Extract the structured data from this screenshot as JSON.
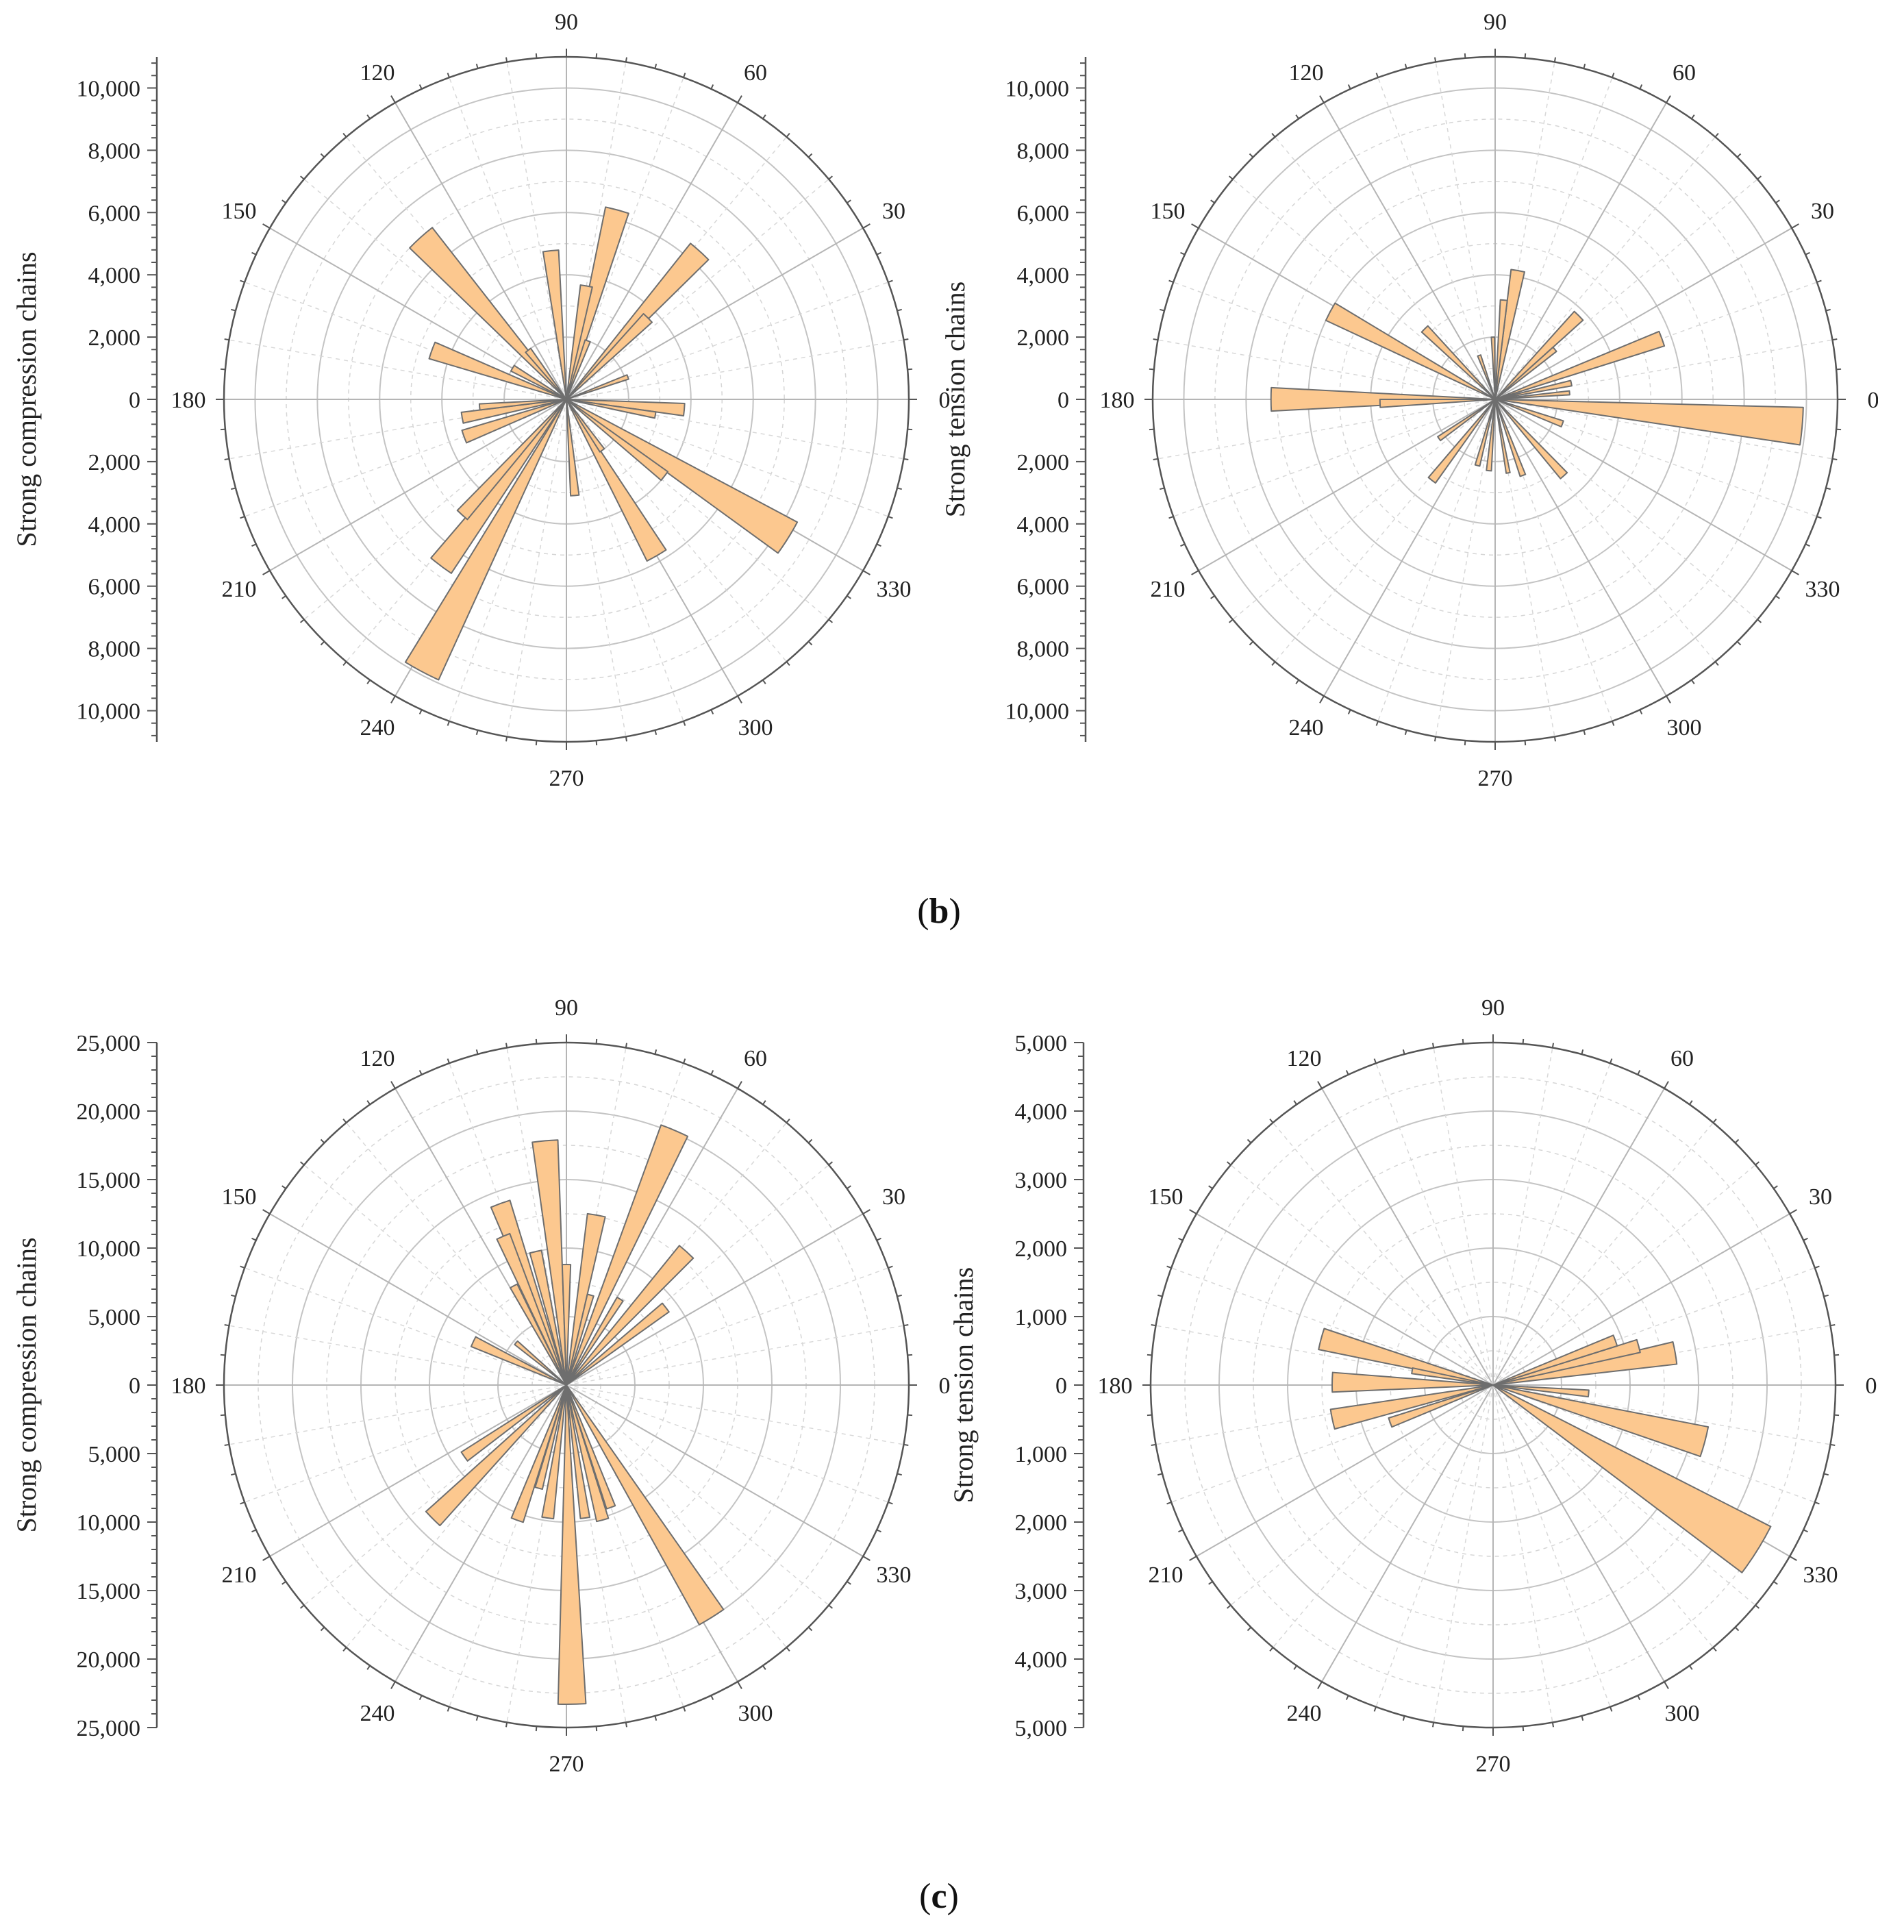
{
  "figure": {
    "captions": [
      {
        "id": "b",
        "open": "(",
        "letter": "b",
        "close": ")"
      },
      {
        "id": "c",
        "open": "(",
        "letter": "c",
        "close": ")"
      }
    ]
  },
  "chart_data": [
    {
      "id": "b-left",
      "type": "rose",
      "panel": "b",
      "ylabel": "Strong compression chains",
      "rmax": 11000,
      "ticks": [
        0,
        2000,
        4000,
        6000,
        8000,
        10000
      ],
      "tick_labels": [
        "0",
        "2,000",
        "4,000",
        "6,000",
        "8,000",
        "10,000"
      ],
      "angle_labels": [
        "0",
        "30",
        "60",
        "90",
        "120",
        "150",
        "180",
        "210",
        "240",
        "270",
        "300",
        "330"
      ],
      "bar_color": "#fcc88f",
      "bars": [
        {
          "angle": 132,
          "width": 8,
          "value": 7000
        },
        {
          "angle": 128,
          "width": 6,
          "value": 2000
        },
        {
          "angle": 160,
          "width": 7,
          "value": 4600
        },
        {
          "angle": 150,
          "width": 6,
          "value": 2000
        },
        {
          "angle": 96,
          "width": 6,
          "value": 4800
        },
        {
          "angle": 75,
          "width": 7,
          "value": 6300
        },
        {
          "angle": 80,
          "width": 6,
          "value": 3700
        },
        {
          "angle": 70,
          "width": 5,
          "value": 2000
        },
        {
          "angle": 48,
          "width": 7,
          "value": 6400
        },
        {
          "angle": 45,
          "width": 6,
          "value": 3700
        },
        {
          "angle": 20,
          "width": 4,
          "value": 2100
        },
        {
          "angle": 355,
          "width": 6,
          "value": 3800
        },
        {
          "angle": 350,
          "width": 4,
          "value": 2900
        },
        {
          "angle": 328,
          "width": 8,
          "value": 8400
        },
        {
          "angle": 322,
          "width": 5,
          "value": 4000
        },
        {
          "angle": 300,
          "width": 7,
          "value": 5800
        },
        {
          "angle": 305,
          "width": 5,
          "value": 2000
        },
        {
          "angle": 275,
          "width": 5,
          "value": 3100
        },
        {
          "angle": 242,
          "width": 7,
          "value": 9900
        },
        {
          "angle": 233,
          "width": 7,
          "value": 6700
        },
        {
          "angle": 228,
          "width": 5,
          "value": 5000
        },
        {
          "angle": 200,
          "width": 7,
          "value": 3500
        },
        {
          "angle": 190,
          "width": 6,
          "value": 3400
        },
        {
          "angle": 185,
          "width": 4,
          "value": 2800
        }
      ]
    },
    {
      "id": "b-right",
      "type": "rose",
      "panel": "b",
      "ylabel": "Strong tension chains",
      "rmax": 11000,
      "ticks": [
        0,
        2000,
        4000,
        6000,
        8000,
        10000
      ],
      "tick_labels": [
        "0",
        "2,000",
        "4,000",
        "6,000",
        "8,000",
        "10,000"
      ],
      "angle_labels": [
        "0",
        "30",
        "60",
        "90",
        "120",
        "150",
        "180",
        "210",
        "240",
        "270",
        "300",
        "330"
      ],
      "bar_color": "#fcc88f",
      "bars": [
        {
          "angle": 355,
          "width": 7,
          "value": 9900
        },
        {
          "angle": 180,
          "width": 6,
          "value": 7200
        },
        {
          "angle": 182,
          "width": 4,
          "value": 3700
        },
        {
          "angle": 152,
          "width": 6,
          "value": 6000
        },
        {
          "angle": 135,
          "width": 5,
          "value": 3200
        },
        {
          "angle": 80,
          "width": 6,
          "value": 4200
        },
        {
          "angle": 85,
          "width": 4,
          "value": 3200
        },
        {
          "angle": 92,
          "width": 3,
          "value": 2000
        },
        {
          "angle": 45,
          "width": 6,
          "value": 3800
        },
        {
          "angle": 40,
          "width": 4,
          "value": 2500
        },
        {
          "angle": 20,
          "width": 5,
          "value": 5700
        },
        {
          "angle": 12,
          "width": 4,
          "value": 2500
        },
        {
          "angle": 5,
          "width": 3,
          "value": 2400
        },
        {
          "angle": 340,
          "width": 5,
          "value": 2300
        },
        {
          "angle": 312,
          "width": 5,
          "value": 3300
        },
        {
          "angle": 290,
          "width": 4,
          "value": 2600
        },
        {
          "angle": 280,
          "width": 3,
          "value": 2400
        },
        {
          "angle": 265,
          "width": 4,
          "value": 2300
        },
        {
          "angle": 255,
          "width": 4,
          "value": 2200
        },
        {
          "angle": 232,
          "width": 5,
          "value": 3300
        },
        {
          "angle": 215,
          "width": 4,
          "value": 2200
        },
        {
          "angle": 110,
          "width": 4,
          "value": 1500
        }
      ]
    },
    {
      "id": "c-left",
      "type": "rose",
      "panel": "c",
      "ylabel": "Strong compression chains",
      "rmax": 25000,
      "ticks": [
        0,
        5000,
        10000,
        15000,
        20000,
        25000
      ],
      "tick_labels": [
        "0",
        "5,000",
        "10,000",
        "15,000",
        "20,000",
        "25,000"
      ],
      "angle_labels": [
        "0",
        "30",
        "60",
        "90",
        "120",
        "150",
        "180",
        "210",
        "240",
        "270",
        "300",
        "330"
      ],
      "bar_color": "#fcc88f",
      "bars": [
        {
          "angle": 67,
          "width": 6,
          "value": 20200
        },
        {
          "angle": 95,
          "width": 6,
          "value": 17900
        },
        {
          "angle": 80,
          "width": 6,
          "value": 12600
        },
        {
          "angle": 110,
          "width": 6,
          "value": 14100
        },
        {
          "angle": 113,
          "width": 5,
          "value": 11800
        },
        {
          "angle": 103,
          "width": 5,
          "value": 10000
        },
        {
          "angle": 118,
          "width": 4,
          "value": 8200
        },
        {
          "angle": 90,
          "width": 4,
          "value": 8800
        },
        {
          "angle": 75,
          "width": 4,
          "value": 6800
        },
        {
          "angle": 48,
          "width": 6,
          "value": 13100
        },
        {
          "angle": 38,
          "width": 5,
          "value": 9200
        },
        {
          "angle": 58,
          "width": 4,
          "value": 7400
        },
        {
          "angle": 155,
          "width": 6,
          "value": 7500
        },
        {
          "angle": 140,
          "width": 4,
          "value": 4800
        },
        {
          "angle": 271,
          "width": 5,
          "value": 23300
        },
        {
          "angle": 302,
          "width": 6,
          "value": 20000
        },
        {
          "angle": 285,
          "width": 5,
          "value": 10200
        },
        {
          "angle": 278,
          "width": 4,
          "value": 9800
        },
        {
          "angle": 262,
          "width": 5,
          "value": 9800
        },
        {
          "angle": 250,
          "width": 5,
          "value": 10500
        },
        {
          "angle": 225,
          "width": 6,
          "value": 13800
        },
        {
          "angle": 215,
          "width": 5,
          "value": 9100
        },
        {
          "angle": 255,
          "width": 4,
          "value": 7800
        },
        {
          "angle": 290,
          "width": 4,
          "value": 9500
        }
      ]
    },
    {
      "id": "c-right",
      "type": "rose",
      "panel": "c",
      "ylabel": "Strong tension chains",
      "rmax": 5000,
      "ticks": [
        0,
        1000,
        2000,
        3000,
        4000,
        5000
      ],
      "tick_labels": [
        "0",
        "1,000",
        "2,000",
        "3,000",
        "4,000",
        "5,000"
      ],
      "angle_labels": [
        "0",
        "30",
        "60",
        "90",
        "120",
        "150",
        "180",
        "210",
        "240",
        "270",
        "300",
        "330"
      ],
      "bar_color": "#fcc88f",
      "bars": [
        {
          "angle": 328,
          "width": 10,
          "value": 4550
        },
        {
          "angle": 345,
          "width": 8,
          "value": 3200
        },
        {
          "angle": 10,
          "width": 7,
          "value": 2700
        },
        {
          "angle": 15,
          "width": 5,
          "value": 2200
        },
        {
          "angle": 20,
          "width": 5,
          "value": 1900
        },
        {
          "angle": 355,
          "width": 4,
          "value": 1400
        },
        {
          "angle": 165,
          "width": 7,
          "value": 2600
        },
        {
          "angle": 179,
          "width": 7,
          "value": 2350
        },
        {
          "angle": 192,
          "width": 7,
          "value": 2400
        },
        {
          "angle": 200,
          "width": 5,
          "value": 1600
        },
        {
          "angle": 170,
          "width": 4,
          "value": 1200
        }
      ]
    }
  ]
}
